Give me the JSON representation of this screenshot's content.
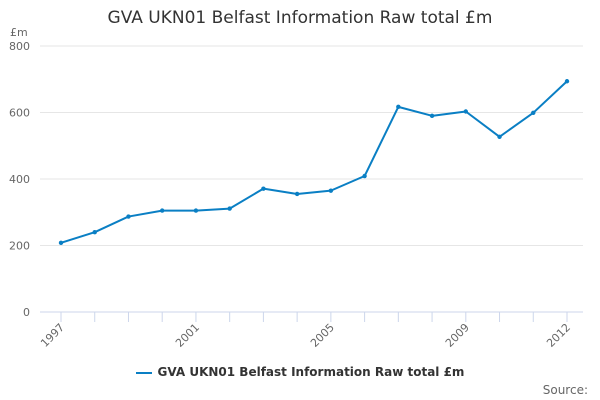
{
  "chart_data": {
    "type": "line",
    "title": "GVA UKN01 Belfast Information Raw total £m",
    "ylabel": "£m",
    "xlabel": "",
    "x": [
      1997,
      1998,
      1999,
      2000,
      2001,
      2002,
      2003,
      2004,
      2005,
      2006,
      2007,
      2008,
      2009,
      2010,
      2011,
      2012
    ],
    "x_tick_labels": [
      "1997",
      "2001",
      "2005",
      "2009",
      "2012"
    ],
    "y_ticks": [
      0,
      200,
      400,
      600,
      800
    ],
    "ylim": [
      0,
      800
    ],
    "grid": "horizontal",
    "legend_position": "bottom",
    "series": [
      {
        "name": "GVA UKN01 Belfast Information Raw total £m",
        "color": "#0a7fc4",
        "values": [
          208,
          240,
          287,
          305,
          305,
          311,
          371,
          355,
          365,
          409,
          617,
          590,
          603,
          527,
          599,
          694
        ]
      }
    ]
  },
  "source_label": "Source:"
}
